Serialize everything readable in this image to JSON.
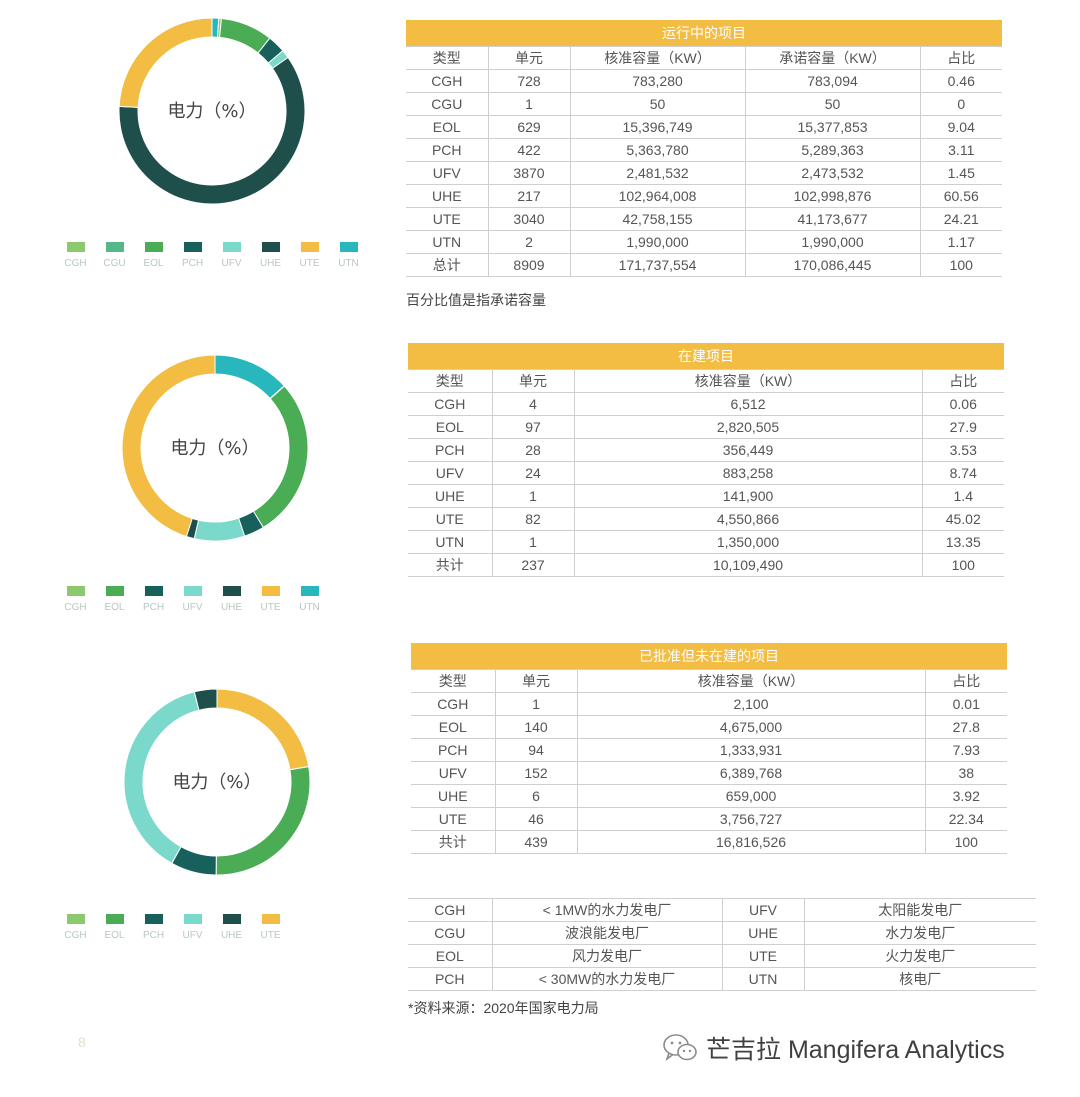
{
  "colors": {
    "CGH": "#8cc86e",
    "CGU": "#56b88a",
    "EOL": "#4aac54",
    "PCH": "#17605c",
    "UFV": "#7bd9cc",
    "UHE": "#1f4f4a",
    "UTE": "#f2bd42",
    "UTN": "#27b7bd",
    "ring_bg": "#f7f3e0",
    "header_bg": "#f2bd42"
  },
  "chart_data": [
    {
      "type": "pie",
      "title": "电力（%）",
      "categories": [
        "CGH",
        "CGU",
        "EOL",
        "PCH",
        "UFV",
        "UHE",
        "UTE",
        "UTN"
      ],
      "values": [
        0.46,
        0,
        9.04,
        3.11,
        1.45,
        60.56,
        24.21,
        1.17
      ],
      "legend": "bottom"
    },
    {
      "type": "pie",
      "title": "电力（%）",
      "categories": [
        "CGH",
        "EOL",
        "PCH",
        "UFV",
        "UHE",
        "UTE",
        "UTN"
      ],
      "values": [
        0.06,
        27.9,
        3.53,
        8.74,
        1.4,
        45.02,
        13.35
      ],
      "legend": "bottom"
    },
    {
      "type": "pie",
      "title": "电力（%）",
      "categories": [
        "CGH",
        "EOL",
        "PCH",
        "UFV",
        "UHE",
        "UTE"
      ],
      "values": [
        0.01,
        27.8,
        7.93,
        38,
        3.92,
        22.34
      ],
      "legend": "bottom"
    }
  ],
  "tables": [
    {
      "caption": "运行中的项目",
      "headers": [
        "类型",
        "单元",
        "核准容量（KW）",
        "承诺容量（KW）",
        "占比"
      ],
      "rows": [
        [
          "CGH",
          "728",
          "783,280",
          "783,094",
          "0.46"
        ],
        [
          "CGU",
          "1",
          "50",
          "50",
          "0"
        ],
        [
          "EOL",
          "629",
          "15,396,749",
          "15,377,853",
          "9.04"
        ],
        [
          "PCH",
          "422",
          "5,363,780",
          "5,289,363",
          "3.11"
        ],
        [
          "UFV",
          "3870",
          "2,481,532",
          "2,473,532",
          "1.45"
        ],
        [
          "UHE",
          "217",
          "102,964,008",
          "102,998,876",
          "60.56"
        ],
        [
          "UTE",
          "3040",
          "42,758,155",
          "41,173,677",
          "24.21"
        ],
        [
          "UTN",
          "2",
          "1,990,000",
          "1,990,000",
          "1.17"
        ],
        [
          "总计",
          "8909",
          "171,737,554",
          "170,086,445",
          "100"
        ]
      ],
      "note": "百分比值是指承诺容量"
    },
    {
      "caption": "在建项目",
      "headers": [
        "类型",
        "单元",
        "核准容量（KW）",
        "占比"
      ],
      "rows": [
        [
          "CGH",
          "4",
          "6,512",
          "0.06"
        ],
        [
          "EOL",
          "97",
          "2,820,505",
          "27.9"
        ],
        [
          "PCH",
          "28",
          "356,449",
          "3.53"
        ],
        [
          "UFV",
          "24",
          "883,258",
          "8.74"
        ],
        [
          "UHE",
          "1",
          "141,900",
          "1.4"
        ],
        [
          "UTE",
          "82",
          "4,550,866",
          "45.02"
        ],
        [
          "UTN",
          "1",
          "1,350,000",
          "13.35"
        ],
        [
          "共计",
          "237",
          "10,109,490",
          "100"
        ]
      ]
    },
    {
      "caption": "已批准但未在建的项目",
      "headers": [
        "类型",
        "单元",
        "核准容量（KW）",
        "占比"
      ],
      "rows": [
        [
          "CGH",
          "1",
          "2,100",
          "0.01"
        ],
        [
          "EOL",
          "140",
          "4,675,000",
          "27.8"
        ],
        [
          "PCH",
          "94",
          "1,333,931",
          "7.93"
        ],
        [
          "UFV",
          "152",
          "6,389,768",
          "38"
        ],
        [
          "UHE",
          "6",
          "659,000",
          "3.92"
        ],
        [
          "UTE",
          "46",
          "3,756,727",
          "22.34"
        ],
        [
          "共计",
          "439",
          "16,816,526",
          "100"
        ]
      ]
    }
  ],
  "glossary": {
    "rows": [
      [
        "CGH",
        "< 1MW的水力发电厂",
        "UFV",
        "太阳能发电厂"
      ],
      [
        "CGU",
        "波浪能发电厂",
        "UHE",
        "水力发电厂"
      ],
      [
        "EOL",
        "风力发电厂",
        "UTE",
        "火力发电厂"
      ],
      [
        "PCH",
        "< 30MW的水力发电厂",
        "UTN",
        "核电厂"
      ]
    ]
  },
  "source_note": "*资料来源：2020年国家电力局",
  "page_number": "8",
  "brand": "芒吉拉 Mangifera Analytics"
}
